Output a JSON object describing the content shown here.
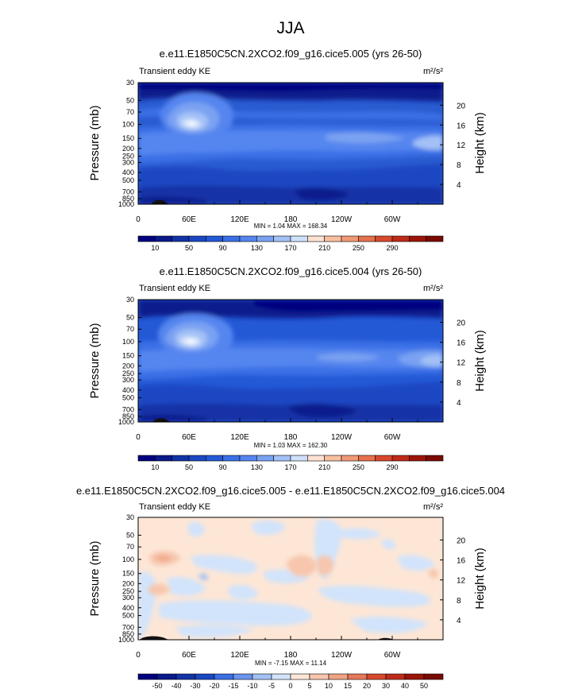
{
  "main_title": "JJA",
  "cmap_top": [
    "#00007f",
    "#0a1a8c",
    "#1233a6",
    "#1a47c2",
    "#2459d6",
    "#3a6fe6",
    "#5585ef",
    "#7aa2f2",
    "#a3c1f6",
    "#cfe0fb",
    "#fde2d2",
    "#f7bfa0",
    "#f09a75",
    "#e7704d",
    "#d8492c",
    "#bf2b18",
    "#9c1408",
    "#7a0a03"
  ],
  "cmap_diff": [
    "#00007f",
    "#0a1a8c",
    "#1233a6",
    "#1a47c2",
    "#3a6fe6",
    "#6a94ef",
    "#a3c1f6",
    "#d2e4fb",
    "#fde6d6",
    "#f7c6ad",
    "#f0a383",
    "#e7785a",
    "#d8492c",
    "#bf2b18",
    "#9c1408",
    "#7a0a03"
  ],
  "chart_data": [
    {
      "type": "contour",
      "subtitle": "e.e11.E1850C5CN.2XCO2.f09_g16.cice5.005 (yrs 26-50)",
      "left_label": "Transient eddy KE",
      "units_label": "m²/s²",
      "ylabel": "Pressure (mb)",
      "ylabel_right": "Height (km)",
      "pressure_ticks": [
        "30",
        "50",
        "70",
        "100",
        "150",
        "200",
        "250",
        "300",
        "400",
        "500",
        "700",
        "850",
        "1000"
      ],
      "height_ticks": [
        "20",
        "16",
        "12",
        "8",
        "4"
      ],
      "lon_ticks": [
        "0",
        "60E",
        "120E",
        "180",
        "120W",
        "60W"
      ],
      "stats": "MIN =  1.04  MAX = 168.34",
      "colorbar_labels": [
        "10",
        "50",
        "90",
        "130",
        "170",
        "210",
        "250",
        "290"
      ],
      "min": 1.04,
      "max": 168.34
    },
    {
      "type": "contour",
      "subtitle": "e.e11.E1850C5CN.2XCO2.f09_g16.cice5.004 (yrs 26-50)",
      "left_label": "Transient eddy KE",
      "units_label": "m²/s²",
      "ylabel": "Pressure (mb)",
      "ylabel_right": "Height (km)",
      "pressure_ticks": [
        "30",
        "50",
        "70",
        "100",
        "150",
        "200",
        "250",
        "300",
        "400",
        "500",
        "700",
        "850",
        "1000"
      ],
      "height_ticks": [
        "20",
        "16",
        "12",
        "8",
        "4"
      ],
      "lon_ticks": [
        "0",
        "60E",
        "120E",
        "180",
        "120W",
        "60W"
      ],
      "stats": "MIN =  1.03  MAX = 162.30",
      "colorbar_labels": [
        "10",
        "50",
        "90",
        "130",
        "170",
        "210",
        "250",
        "290"
      ],
      "min": 1.03,
      "max": 162.3
    },
    {
      "type": "contour",
      "subtitle": "e.e11.E1850C5CN.2XCO2.f09_g16.cice5.005 - e.e11.E1850C5CN.2XCO2.f09_g16.cice5.004",
      "left_label": "Transient eddy KE",
      "units_label": "m²/s²",
      "ylabel": "Pressure (mb)",
      "ylabel_right": "Height (km)",
      "pressure_ticks": [
        "30",
        "50",
        "70",
        "100",
        "150",
        "200",
        "250",
        "300",
        "400",
        "500",
        "700",
        "850",
        "1000"
      ],
      "height_ticks": [
        "20",
        "16",
        "12",
        "8",
        "4"
      ],
      "lon_ticks": [
        "0",
        "60E",
        "120E",
        "180",
        "120W",
        "60W"
      ],
      "stats": "MIN = -7.15  MAX = 11.14",
      "colorbar_labels": [
        "-50",
        "-40",
        "-30",
        "-20",
        "-15",
        "-10",
        "-5",
        "0",
        "5",
        "10",
        "15",
        "20",
        "30",
        "40",
        "50"
      ],
      "min": -7.15,
      "max": 11.14
    }
  ]
}
